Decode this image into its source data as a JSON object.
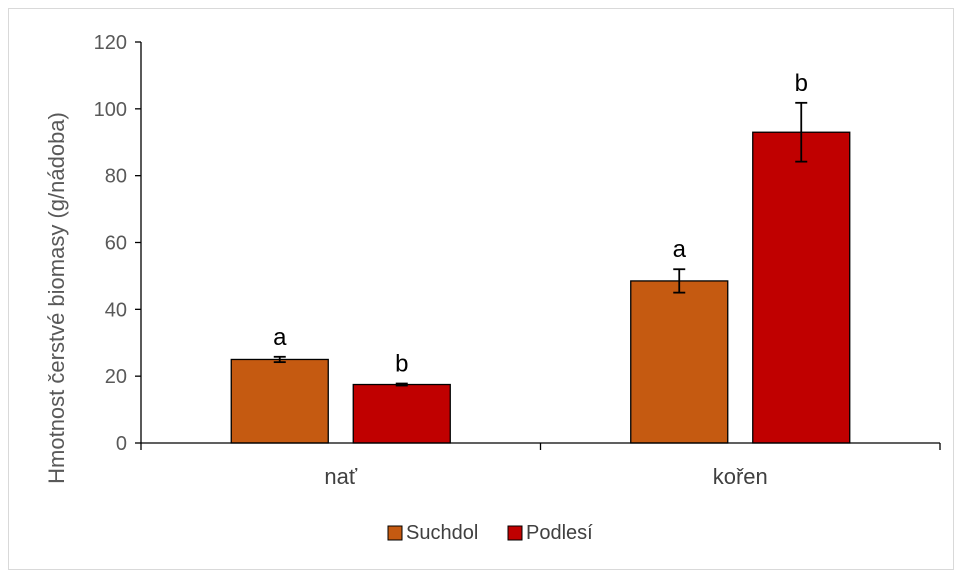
{
  "chart_data": {
    "type": "bar",
    "title": "",
    "xlabel": "",
    "ylabel": "Hmotnost čerstvé biomasy (g/nádoba)",
    "ylim": [
      0,
      120
    ],
    "yticks": [
      0,
      20,
      40,
      60,
      80,
      100,
      120
    ],
    "categories": [
      "nať",
      "kořen"
    ],
    "series": [
      {
        "name": "Suchdol",
        "color": "#C55A11",
        "values": [
          25,
          48.5
        ],
        "errors": [
          0.8,
          3.5
        ],
        "significance": [
          "a",
          "a"
        ]
      },
      {
        "name": "Podlesí",
        "color": "#C00000",
        "values": [
          17.5,
          93
        ],
        "errors": [
          0.3,
          8.8
        ],
        "significance": [
          "b",
          "b"
        ]
      }
    ],
    "grid": false,
    "legend_position": "bottom"
  }
}
